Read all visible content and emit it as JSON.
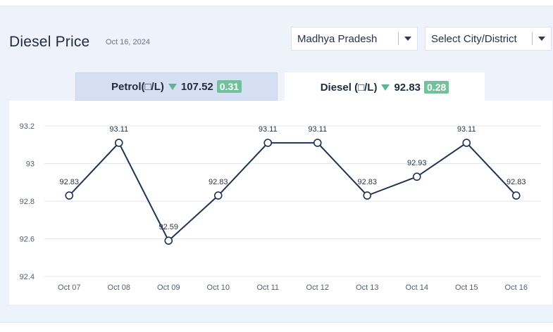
{
  "header": {
    "title": "Diesel Price",
    "date": "Oct 16, 2024",
    "state_select": "Madhya Pradesh",
    "city_select": "Select City/District"
  },
  "tabs": [
    {
      "label": "Petrol(□/L)",
      "price": "107.52",
      "change": "0.31",
      "direction": "down"
    },
    {
      "label": "Diesel (□/L)",
      "price": "92.83",
      "change": "0.28",
      "direction": "down"
    }
  ],
  "colors": {
    "line": "#1e3352",
    "badge": "#74c09c",
    "down_arrow": "#5fb593",
    "active_tab": "#ffffff",
    "inactive_tab": "#d6e0f5"
  },
  "chart_data": {
    "type": "line",
    "x": [
      "Oct 07",
      "Oct 08",
      "Oct 09",
      "Oct 10",
      "Oct 11",
      "Oct 12",
      "Oct 13",
      "Oct 14",
      "Oct 15",
      "Oct 16"
    ],
    "series": [
      {
        "values": [
          92.83,
          93.11,
          92.59,
          92.83,
          93.11,
          93.11,
          92.83,
          92.93,
          93.11,
          92.83
        ]
      }
    ],
    "data_labels": [
      "92.83",
      "93.11",
      "92.59",
      "92.83",
      "93.11",
      "93.11",
      "92.83",
      "92.93",
      "93.11",
      "92.83"
    ],
    "y_ticks": [
      "92.4",
      "92.6",
      "92.8",
      "93",
      "93.2"
    ],
    "ylim": [
      92.4,
      93.2
    ],
    "grid": "horizontal",
    "title": "",
    "xlabel": "",
    "ylabel": ""
  }
}
